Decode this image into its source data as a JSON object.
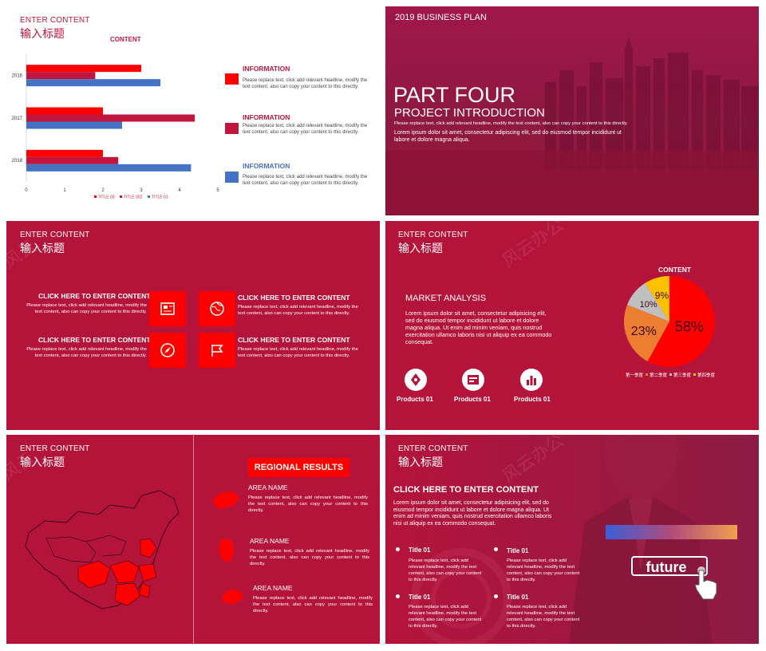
{
  "slide1": {
    "header_en": "ENTER CONTENT",
    "header_cn": "输入标题",
    "chart_data": {
      "type": "bar",
      "orientation": "horizontal",
      "title": "CONTENT",
      "categories": [
        "2016",
        "2017",
        "2018"
      ],
      "series": [
        {
          "name": "TITLE 03",
          "color": "#ff0000",
          "values": [
            3,
            2,
            2
          ]
        },
        {
          "name": "TITLE 002",
          "color": "#c0163d",
          "values": [
            1.8,
            4.4,
            2.4
          ]
        },
        {
          "name": "TITLE 01",
          "color": "#4472c4",
          "values": [
            3.5,
            2.5,
            4.3
          ]
        }
      ],
      "xlim": [
        0,
        5
      ],
      "xticks": [
        "0",
        "1",
        "2",
        "3",
        "4",
        "5"
      ],
      "legend": "bottom"
    },
    "info": [
      {
        "title": "INFORMATION",
        "text": "Please replace text, click add relevant headline, modify the text content, also can copy your content to this directly.",
        "color": "#ff0000",
        "title_color": "#c0163d"
      },
      {
        "title": "INFORMATION",
        "text": "Please replace text, click add relevant headline, modify the text content, also can copy your content to this directly.",
        "color": "#c0163d",
        "title_color": "#c0163d"
      },
      {
        "title": "INFORMATION",
        "text": "Please replace text, click add relevant headline, modify the text content, also can copy your content to this directly.",
        "color": "#4472c4",
        "title_color": "#4472c4"
      }
    ]
  },
  "slide2": {
    "top": "2019  BUSINESS  PLAN",
    "title": "PART  FOUR",
    "subtitle": "PROJECT    INTRODUCTION",
    "line1": "Please replace text, click add relevant headline, modify the text content, also can copy your content to this directly.",
    "line2": "Lorem ipsum dolor sit amet, consectetur adipiscing elit, sed do eiusmod tempor incididunt ut labore et dolore magna aliqua."
  },
  "slide3": {
    "header_en": "ENTER CONTENT",
    "header_cn": "输入标题",
    "items": [
      {
        "title": "CLICK HERE TO ENTER CONTENT",
        "text": "Please replace text, click add relevant headline, modify the text content, also can copy your content to this directly."
      },
      {
        "title": "CLICK HERE TO ENTER CONTENT",
        "text": "Please replace text, click add relevant headline, modify the text content, also can copy your content to this directly."
      },
      {
        "title": "CLICK HERE TO ENTER CONTENT",
        "text": "Please replace text, click add relevant headline, modify the text content, also can copy your content to this directly."
      },
      {
        "title": "CLICK HERE TO ENTER CONTENT",
        "text": "Please replace text, click add relevant headline, modify the text content, also can copy your content to this directly."
      }
    ],
    "icons": [
      "newspaper-icon",
      "globe-icon",
      "compass-icon",
      "flag-icon"
    ]
  },
  "slide4": {
    "header_en": "ENTER CONTENT",
    "header_cn": "输入标题",
    "heading": "MARKET ANALYSIS",
    "body": "Lorem ipsum dolor sit amet, consectetur adipisicing elit, sed do eiusmod tempor incididunt ut labore et dolore magna aliqua. Ut enim ad minim veniam, quis nostrud exercitation ullamco laboris nisi ut aliquip ex ea commodo consequat.",
    "products": [
      {
        "label": "Products 01",
        "icon": "pen-nib-icon"
      },
      {
        "label": "Products 01",
        "icon": "browser-icon"
      },
      {
        "label": "Products 01",
        "icon": "bar-chart-icon"
      }
    ],
    "chart_data": {
      "type": "pie",
      "title": "CONTENT",
      "labels": [
        "第一季度",
        "第二季度",
        "第三季度",
        "第四季度"
      ],
      "values": [
        58,
        23,
        10,
        9
      ],
      "value_labels": [
        "58%",
        "23%",
        "10%",
        "9%"
      ],
      "colors": [
        "#ff0000",
        "#ed7d31",
        "#bfbfbf",
        "#ffc000"
      ],
      "legend": "bottom"
    }
  },
  "slide5": {
    "header_en": "ENTER CONTENT",
    "header_cn": "输入标题",
    "badge": "REGIONAL RESULTS",
    "areas": [
      {
        "name": "AREA NAME",
        "text": "Please replace text, click add relevant headline, modify the text content, also can copy your content to this directly."
      },
      {
        "name": "AREA NAME",
        "text": "Please replace text, click add relevant headline, modify the text content, also can copy your content to this directly."
      },
      {
        "name": "AREA NAME",
        "text": "Please replace text, click add relevant headline, modify the text content, also can copy your content to this directly."
      }
    ]
  },
  "slide6": {
    "header_en": "ENTER CONTENT",
    "header_cn": "输入标题",
    "heading": "CLICK HERE TO ENTER CONTENT",
    "body": "Lorem ipsum dolor sit amet, consectetur adipisicing elit, sed do eiusmod tempor incididunt ut labore et dolore magna aliqua. Ut enim ad minim veniam, quis nostrud exercitation ullamco laboris nisi ut aliquip ex ea commodo consequat.",
    "titles": [
      {
        "title": "Title 01",
        "text": "Please replace text, click add relevant headline, modify the text content, also can copy your content to this directly."
      },
      {
        "title": "Title 01",
        "text": "Please replace text, click add relevant headline, modify the text content, also can copy your content to this directly."
      },
      {
        "title": "Title 01",
        "text": "Please replace text, click add relevant headline, modify the text content, also can copy your content to this directly."
      },
      {
        "title": "Title 01",
        "text": "Please replace text, click add relevant headline, modify the text content, also can copy your content to this directly."
      }
    ],
    "button": "future"
  }
}
